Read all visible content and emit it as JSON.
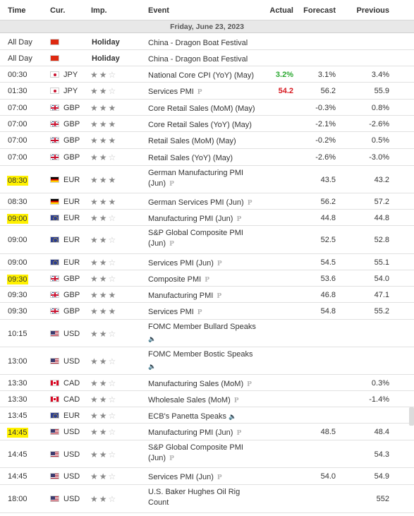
{
  "header": {
    "time": "Time",
    "cur": "Cur.",
    "imp": "Imp.",
    "event": "Event",
    "actual": "Actual",
    "forecast": "Forecast",
    "previous": "Previous"
  },
  "day_label": "Friday, June 23, 2023",
  "icons": {
    "preliminary": "P",
    "speaker": "speaker-icon",
    "star": "star-icon"
  },
  "colors": {
    "actual_up": "#2aa830",
    "actual_down": "#d71920",
    "highlight": "#fff100"
  },
  "rows": [
    {
      "time": "All Day",
      "flag": "china",
      "cur": "",
      "imp": "Holiday",
      "stars": 0,
      "event": [
        "China - Dragon Boat Festival"
      ],
      "actual": "",
      "forecast": "",
      "previous": ""
    },
    {
      "time": "All Day",
      "flag": "china",
      "cur": "",
      "imp": "Holiday",
      "stars": 0,
      "event": [
        "China - Dragon Boat Festival"
      ],
      "actual": "",
      "forecast": "",
      "previous": ""
    },
    {
      "time": "00:30",
      "flag": "japan",
      "cur": "JPY",
      "stars": 2,
      "event": [
        "National Core CPI (YoY) (May)"
      ],
      "actual": "3.2%",
      "actual_color": "up",
      "forecast": "3.1%",
      "previous": "3.4%"
    },
    {
      "time": "01:30",
      "flag": "japan",
      "cur": "JPY",
      "stars": 2,
      "event": [
        "Services PMI"
      ],
      "prelim": true,
      "actual": "54.2",
      "actual_color": "down",
      "forecast": "56.2",
      "previous": "55.9"
    },
    {
      "time": "07:00",
      "flag": "uk",
      "cur": "GBP",
      "stars": 3,
      "event": [
        "Core Retail Sales (MoM) (May)"
      ],
      "actual": "",
      "forecast": "-0.3%",
      "previous": "0.8%"
    },
    {
      "time": "07:00",
      "flag": "uk",
      "cur": "GBP",
      "stars": 3,
      "event": [
        "Core Retail Sales (YoY) (May)"
      ],
      "actual": "",
      "forecast": "-2.1%",
      "previous": "-2.6%"
    },
    {
      "time": "07:00",
      "flag": "uk",
      "cur": "GBP",
      "stars": 3,
      "event": [
        "Retail Sales (MoM) (May)"
      ],
      "actual": "",
      "forecast": "-0.2%",
      "previous": "0.5%"
    },
    {
      "time": "07:00",
      "flag": "uk",
      "cur": "GBP",
      "stars": 2,
      "event": [
        "Retail Sales (YoY) (May)"
      ],
      "actual": "",
      "forecast": "-2.6%",
      "previous": "-3.0%"
    },
    {
      "time": "08:30",
      "highlight": true,
      "flag": "germany",
      "cur": "EUR",
      "stars": 3,
      "event": [
        "German Manufacturing PMI",
        "(Jun)"
      ],
      "prelim": true,
      "actual": "",
      "forecast": "43.5",
      "previous": "43.2"
    },
    {
      "time": "08:30",
      "flag": "germany",
      "cur": "EUR",
      "stars": 3,
      "event": [
        "German Services PMI (Jun)"
      ],
      "prelim": true,
      "actual": "",
      "forecast": "56.2",
      "previous": "57.2"
    },
    {
      "time": "09:00",
      "highlight": true,
      "flag": "eu",
      "cur": "EUR",
      "stars": 2,
      "event": [
        "Manufacturing PMI (Jun)"
      ],
      "prelim": true,
      "actual": "",
      "forecast": "44.8",
      "previous": "44.8"
    },
    {
      "time": "09:00",
      "flag": "eu",
      "cur": "EUR",
      "stars": 2,
      "event": [
        "S&P Global Composite PMI",
        "(Jun)"
      ],
      "prelim": true,
      "actual": "",
      "forecast": "52.5",
      "previous": "52.8"
    },
    {
      "time": "09:00",
      "flag": "eu",
      "cur": "EUR",
      "stars": 2,
      "event": [
        "Services PMI (Jun)"
      ],
      "prelim": true,
      "actual": "",
      "forecast": "54.5",
      "previous": "55.1"
    },
    {
      "time": "09:30",
      "highlight": true,
      "flag": "uk",
      "cur": "GBP",
      "stars": 2,
      "event": [
        "Composite PMI"
      ],
      "prelim": true,
      "actual": "",
      "forecast": "53.6",
      "previous": "54.0"
    },
    {
      "time": "09:30",
      "flag": "uk",
      "cur": "GBP",
      "stars": 3,
      "event": [
        "Manufacturing PMI"
      ],
      "prelim": true,
      "actual": "",
      "forecast": "46.8",
      "previous": "47.1"
    },
    {
      "time": "09:30",
      "flag": "uk",
      "cur": "GBP",
      "stars": 3,
      "event": [
        "Services PMI"
      ],
      "prelim": true,
      "actual": "",
      "forecast": "54.8",
      "previous": "55.2"
    },
    {
      "time": "10:15",
      "flag": "us",
      "cur": "USD",
      "stars": 2,
      "event": [
        "FOMC Member Bullard Speaks",
        ""
      ],
      "speech": true,
      "actual": "",
      "forecast": "",
      "previous": ""
    },
    {
      "time": "13:00",
      "flag": "us",
      "cur": "USD",
      "stars": 2,
      "event": [
        "FOMC Member Bostic Speaks",
        ""
      ],
      "speech": true,
      "actual": "",
      "forecast": "",
      "previous": ""
    },
    {
      "time": "13:30",
      "flag": "canada",
      "cur": "CAD",
      "stars": 2,
      "event": [
        "Manufacturing Sales (MoM)"
      ],
      "prelim": true,
      "actual": "",
      "forecast": "",
      "previous": "0.3%"
    },
    {
      "time": "13:30",
      "flag": "canada",
      "cur": "CAD",
      "stars": 2,
      "event": [
        "Wholesale Sales (MoM)"
      ],
      "prelim": true,
      "actual": "",
      "forecast": "",
      "previous": "-1.4%"
    },
    {
      "time": "13:45",
      "flag": "eu",
      "cur": "EUR",
      "stars": 2,
      "event": [
        "ECB's Panetta Speaks"
      ],
      "speech": true,
      "actual": "",
      "forecast": "",
      "previous": ""
    },
    {
      "time": "14:45",
      "highlight": true,
      "flag": "us",
      "cur": "USD",
      "stars": 2,
      "event": [
        "Manufacturing PMI (Jun)"
      ],
      "prelim": true,
      "actual": "",
      "forecast": "48.5",
      "previous": "48.4"
    },
    {
      "time": "14:45",
      "flag": "us",
      "cur": "USD",
      "stars": 2,
      "event": [
        "S&P Global Composite PMI",
        "(Jun)"
      ],
      "prelim": true,
      "actual": "",
      "forecast": "",
      "previous": "54.3"
    },
    {
      "time": "14:45",
      "flag": "us",
      "cur": "USD",
      "stars": 2,
      "event": [
        "Services PMI (Jun)"
      ],
      "prelim": true,
      "actual": "",
      "forecast": "54.0",
      "previous": "54.9"
    },
    {
      "time": "18:00",
      "flag": "us",
      "cur": "USD",
      "stars": 2,
      "event": [
        "U.S. Baker Hughes Oil Rig",
        "Count"
      ],
      "actual": "",
      "forecast": "",
      "previous": "552"
    }
  ]
}
